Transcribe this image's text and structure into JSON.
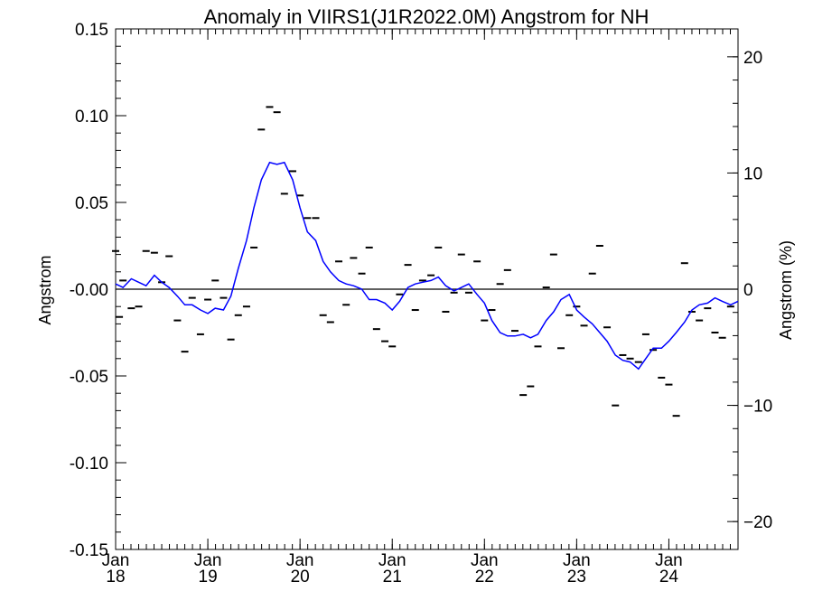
{
  "chart_data": {
    "type": "line",
    "title": "Anomaly in VIIRS1(J1R2022.0M) Angstrom for NH",
    "ylabel": "Angstrom",
    "y2label": "Angstrom (%)",
    "xlim": [
      2018.0,
      2024.75
    ],
    "ylim": [
      -0.15,
      0.15
    ],
    "y2lim": [
      -22.4,
      22.4
    ],
    "x_ticks": [
      {
        "x": 2018,
        "month": "Jan",
        "year": "18"
      },
      {
        "x": 2019,
        "month": "Jan",
        "year": "19"
      },
      {
        "x": 2020,
        "month": "Jan",
        "year": "20"
      },
      {
        "x": 2021,
        "month": "Jan",
        "year": "21"
      },
      {
        "x": 2022,
        "month": "Jan",
        "year": "22"
      },
      {
        "x": 2023,
        "month": "Jan",
        "year": "23"
      },
      {
        "x": 2024,
        "month": "Jan",
        "year": "24"
      }
    ],
    "y_ticks": [
      "0.15",
      "0.10",
      "0.05",
      "-0.00",
      "-0.05",
      "-0.10",
      "-0.15"
    ],
    "y_tick_values": [
      0.15,
      0.1,
      0.05,
      0.0,
      -0.05,
      -0.1,
      -0.15
    ],
    "y2_ticks": [
      "20",
      "10",
      "0",
      "−10",
      "−20"
    ],
    "y2_tick_values": [
      20,
      10,
      0,
      -10,
      -20
    ],
    "zero_line": true,
    "grid": false,
    "series": [
      {
        "style": "dash-markers",
        "color": "#000000",
        "x": [
          2018.0,
          2018.04,
          2018.08,
          2018.17,
          2018.25,
          2018.33,
          2018.42,
          2018.5,
          2018.58,
          2018.67,
          2018.75,
          2018.83,
          2018.92,
          2019.0,
          2019.08,
          2019.17,
          2019.25,
          2019.33,
          2019.42,
          2019.5,
          2019.58,
          2019.67,
          2019.75,
          2019.83,
          2019.92,
          2020.0,
          2020.08,
          2020.17,
          2020.25,
          2020.33,
          2020.42,
          2020.5,
          2020.58,
          2020.67,
          2020.75,
          2020.83,
          2020.92,
          2021.0,
          2021.08,
          2021.17,
          2021.25,
          2021.33,
          2021.42,
          2021.5,
          2021.58,
          2021.67,
          2021.75,
          2021.83,
          2021.92,
          2022.0,
          2022.08,
          2022.17,
          2022.25,
          2022.33,
          2022.42,
          2022.5,
          2022.58,
          2022.67,
          2022.75,
          2022.83,
          2022.92,
          2023.0,
          2023.08,
          2023.17,
          2023.25,
          2023.33,
          2023.42,
          2023.5,
          2023.58,
          2023.67,
          2023.75,
          2023.83,
          2023.92,
          2024.0,
          2024.08,
          2024.17,
          2024.25,
          2024.33,
          2024.42,
          2024.5,
          2024.58,
          2024.67
        ],
        "y": [
          0.022,
          -0.016,
          0.005,
          -0.011,
          -0.01,
          0.022,
          0.021,
          0.004,
          0.019,
          -0.018,
          -0.036,
          -0.005,
          -0.026,
          -0.006,
          0.005,
          -0.005,
          -0.029,
          -0.015,
          -0.01,
          0.024,
          0.092,
          0.105,
          0.102,
          0.055,
          0.068,
          0.054,
          0.041,
          0.041,
          -0.015,
          -0.019,
          0.016,
          -0.009,
          0.018,
          0.009,
          0.024,
          -0.023,
          -0.03,
          -0.033,
          -0.003,
          0.014,
          -0.012,
          0.005,
          0.008,
          0.024,
          -0.013,
          -0.002,
          0.02,
          -0.002,
          0.016,
          -0.018,
          -0.012,
          0.003,
          0.011,
          -0.024,
          -0.061,
          -0.056,
          -0.033,
          0.001,
          0.02,
          -0.034,
          -0.015,
          -0.01,
          -0.021,
          0.009,
          0.025,
          -0.022,
          -0.067,
          -0.038,
          -0.04,
          -0.042,
          -0.026,
          -0.035,
          -0.051,
          -0.055,
          -0.073,
          0.015,
          -0.013,
          -0.018,
          -0.011,
          -0.025,
          -0.028,
          -0.01
        ]
      },
      {
        "style": "line",
        "color": "#0000ff",
        "x": [
          2018.0,
          2018.08,
          2018.17,
          2018.25,
          2018.33,
          2018.42,
          2018.5,
          2018.58,
          2018.67,
          2018.75,
          2018.83,
          2018.92,
          2019.0,
          2019.08,
          2019.17,
          2019.25,
          2019.33,
          2019.42,
          2019.5,
          2019.58,
          2019.67,
          2019.75,
          2019.83,
          2019.92,
          2020.0,
          2020.08,
          2020.17,
          2020.25,
          2020.33,
          2020.42,
          2020.5,
          2020.58,
          2020.67,
          2020.75,
          2020.83,
          2020.92,
          2021.0,
          2021.08,
          2021.17,
          2021.25,
          2021.33,
          2021.42,
          2021.5,
          2021.58,
          2021.67,
          2021.75,
          2021.83,
          2021.92,
          2022.0,
          2022.08,
          2022.17,
          2022.25,
          2022.33,
          2022.42,
          2022.5,
          2022.58,
          2022.67,
          2022.75,
          2022.83,
          2022.92,
          2023.0,
          2023.08,
          2023.17,
          2023.25,
          2023.33,
          2023.42,
          2023.5,
          2023.58,
          2023.67,
          2023.75,
          2023.83,
          2023.92,
          2024.0,
          2024.08,
          2024.17,
          2024.25,
          2024.33,
          2024.42,
          2024.5,
          2024.58,
          2024.67,
          2024.75
        ],
        "y": [
          0.003,
          0.001,
          0.006,
          0.004,
          0.002,
          0.008,
          0.004,
          0.001,
          -0.004,
          -0.009,
          -0.009,
          -0.012,
          -0.014,
          -0.011,
          -0.012,
          -0.004,
          0.012,
          0.028,
          0.047,
          0.063,
          0.073,
          0.072,
          0.073,
          0.063,
          0.047,
          0.033,
          0.028,
          0.016,
          0.01,
          0.005,
          0.003,
          0.002,
          0.0,
          -0.006,
          -0.006,
          -0.008,
          -0.012,
          -0.007,
          0.001,
          0.003,
          0.004,
          0.005,
          0.007,
          0.002,
          -0.001,
          0.001,
          0.003,
          -0.003,
          -0.008,
          -0.018,
          -0.025,
          -0.027,
          -0.027,
          -0.026,
          -0.028,
          -0.026,
          -0.018,
          -0.013,
          -0.006,
          -0.003,
          -0.012,
          -0.016,
          -0.02,
          -0.025,
          -0.03,
          -0.038,
          -0.041,
          -0.042,
          -0.046,
          -0.04,
          -0.034,
          -0.034,
          -0.03,
          -0.025,
          -0.019,
          -0.012,
          -0.009,
          -0.008,
          -0.005,
          -0.007,
          -0.009,
          -0.007
        ]
      }
    ]
  }
}
